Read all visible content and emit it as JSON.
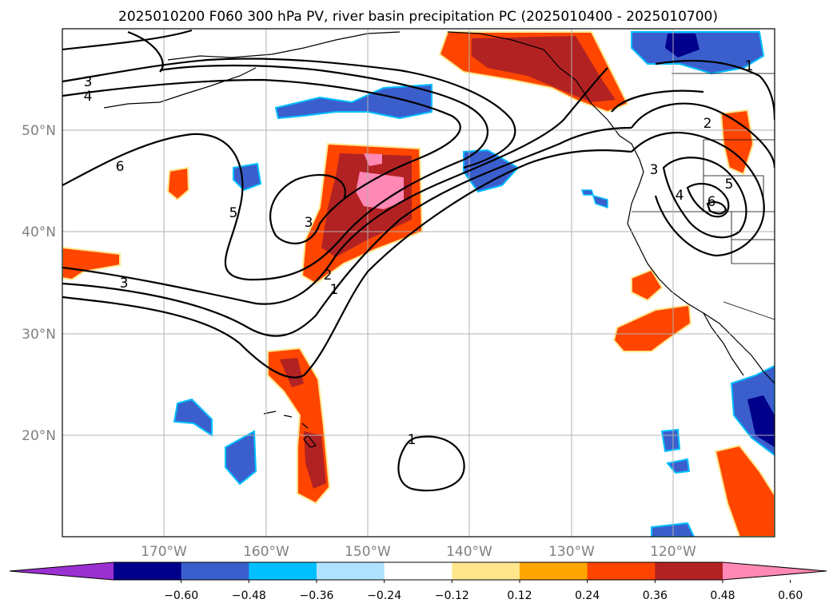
{
  "title": "2025010200 F060 300 hPa PV, river basin precipitation PC (2025010400 - 2025010700)",
  "lat_labels": [
    "50°N",
    "40°N",
    "30°N",
    "20°N"
  ],
  "lon_labels": [
    "170°W",
    "160°W",
    "150°W",
    "140°W",
    "130°W",
    "120°W"
  ],
  "colorbar": {
    "ticks": [
      "−0.60",
      "−0.48",
      "−0.36",
      "−0.24",
      "−0.12",
      "0.12",
      "0.24",
      "0.36",
      "0.48",
      "0.60"
    ],
    "colors": [
      "#9b30d0",
      "#00008b",
      "#3a5fcd",
      "#00bfff",
      "#b0e2ff",
      "#ffffff",
      "#ffe68c",
      "#ffa500",
      "#ff4500",
      "#b22222",
      "#ff88b4"
    ]
  },
  "pv_contour_labels": [
    "3",
    "4",
    "6",
    "5",
    "3",
    "2",
    "1",
    "3",
    "1",
    "1",
    "2",
    "3",
    "4",
    "5",
    "6"
  ],
  "colors": {
    "strong_positive": "#b22222",
    "positive": "#ff4500",
    "max_positive": "#ff88b4",
    "negative": "#3a5fcd",
    "strong_negative": "#00008b"
  }
}
